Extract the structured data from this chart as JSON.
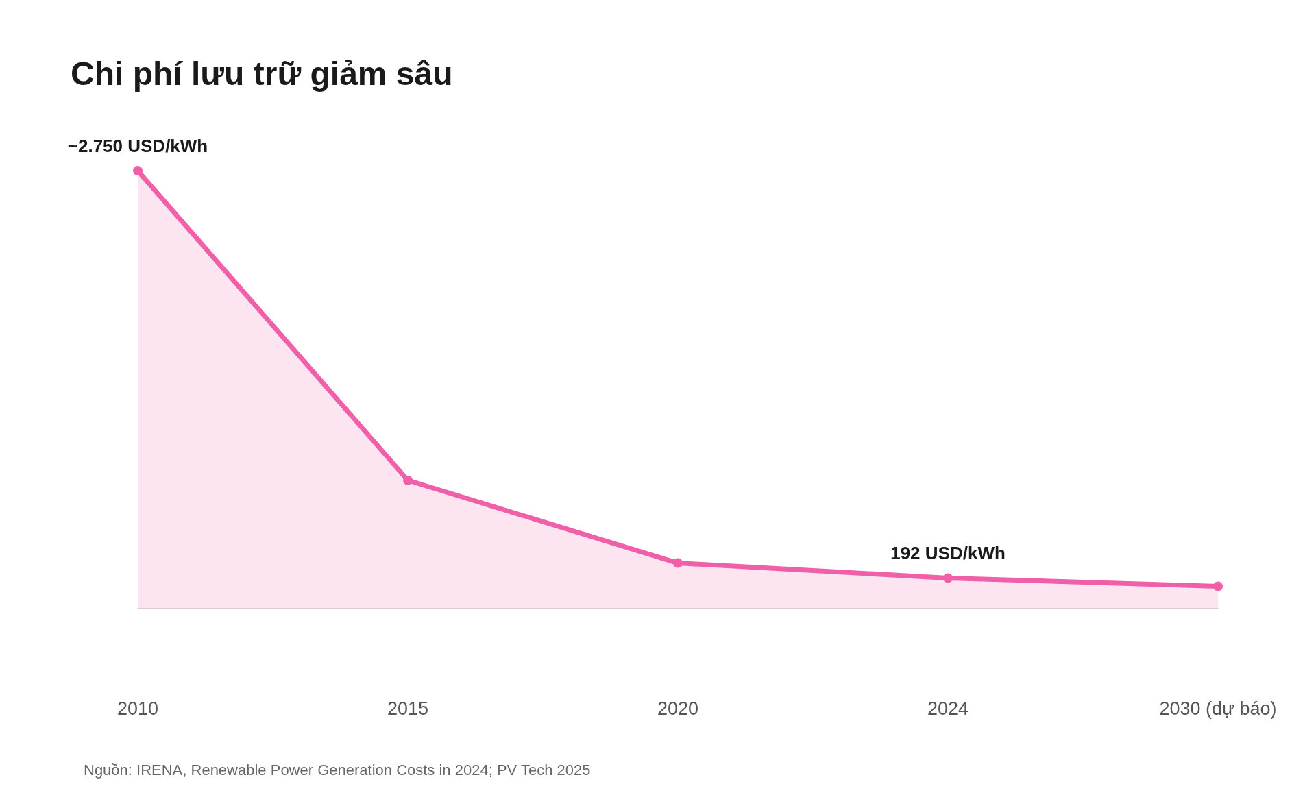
{
  "chart_data": {
    "type": "area",
    "title": "Chi phí lưu trữ giảm sâu",
    "categories": [
      "2010",
      "2015",
      "2020",
      "2024",
      "2030 (dự báo)"
    ],
    "series": [
      {
        "color": "#f060a8",
        "values": [
          2750,
          806,
          286,
          192,
          140
        ],
        "value_labels": [
          "~2.750 USD/kWh",
          null,
          null,
          "192 USD/kWh",
          null
        ]
      }
    ],
    "marker": "circle",
    "grid": false,
    "annotations": [
      "Nguồn: IRENA, Renewable Power Generation Costs in 2024; PV Tech 2025"
    ]
  }
}
